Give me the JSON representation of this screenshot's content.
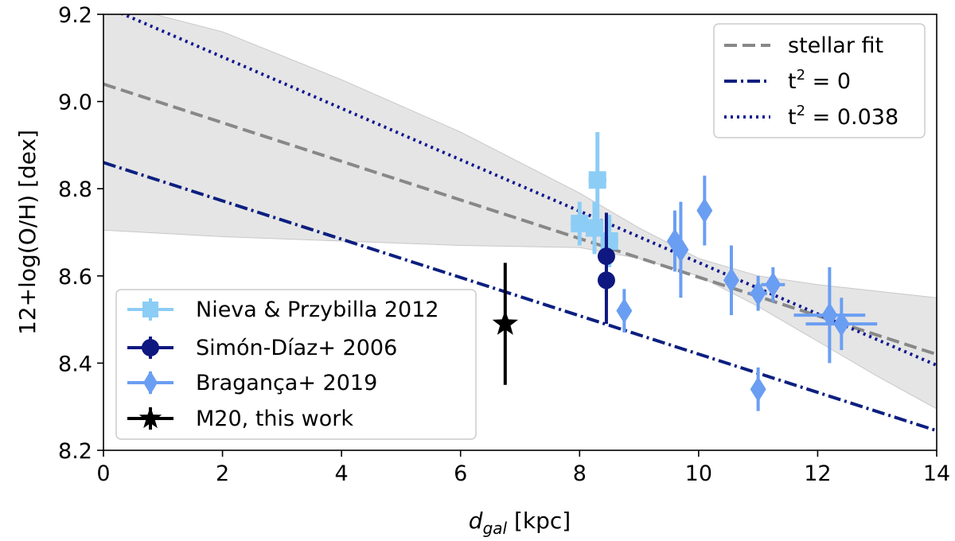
{
  "chart_data": {
    "type": "scatter",
    "title": "",
    "xlabel": {
      "main": "d",
      "sub": "gal",
      "unit": "[kpc]"
    },
    "ylabel": "12+log(O/H) [dex]",
    "xlim": [
      0,
      14
    ],
    "ylim": [
      8.2,
      9.2
    ],
    "xticks": [
      "0",
      "2",
      "4",
      "6",
      "8",
      "10",
      "12",
      "14"
    ],
    "yticks": [
      "8.2",
      "8.4",
      "8.6",
      "8.8",
      "9.0",
      "9.2"
    ],
    "grid": false,
    "legend_upper": {
      "placement": "top-right",
      "entries": [
        {
          "label": "stellar fit",
          "style": "dashed",
          "color": "#888888"
        },
        {
          "label_base": "t",
          "label_sup": "2",
          "label_rest": " = 0",
          "style": "dashdot",
          "color": "#0c1f80"
        },
        {
          "label_base": "t",
          "label_sup": "2",
          "label_rest": " = 0.038",
          "style": "dotted",
          "color": "#10188f"
        }
      ]
    },
    "legend_lower": {
      "placement": "bottom-left",
      "entries": [
        {
          "label": "Nieva & Przybilla 2012",
          "marker": "square",
          "color": "#8ccdf6"
        },
        {
          "label": "Simón-Díaz+ 2006",
          "marker": "circle",
          "color": "#0e1880"
        },
        {
          "label": "Bragança+ 2019",
          "marker": "diamond",
          "color": "#6a9ef2"
        },
        {
          "label": "M20, this work",
          "marker": "star",
          "color": "#000000"
        }
      ]
    },
    "lines": [
      {
        "name": "stellar fit",
        "x": [
          0,
          14
        ],
        "y": [
          9.04,
          8.42
        ],
        "style": "dashed",
        "color": "#888888"
      },
      {
        "name": "t2 = 0",
        "x": [
          0,
          14
        ],
        "y": [
          8.86,
          8.245
        ],
        "style": "dashdot",
        "color": "#0c1f80"
      },
      {
        "name": "t2 = 0.038",
        "x": [
          0,
          14
        ],
        "y": [
          9.22,
          8.395
        ],
        "style": "dotted",
        "color": "#10188f"
      }
    ],
    "band": {
      "color": "#dcdcdc",
      "x": [
        0,
        2,
        4,
        6,
        8,
        9,
        10,
        11,
        12,
        13,
        14
      ],
      "upper": [
        9.23,
        9.16,
        9.05,
        8.93,
        8.79,
        8.71,
        8.64,
        8.6,
        8.58,
        8.565,
        8.55
      ],
      "lower": [
        8.705,
        8.69,
        8.68,
        8.67,
        8.665,
        8.64,
        8.6,
        8.53,
        8.45,
        8.37,
        8.295
      ]
    },
    "series": [
      {
        "name": "Nieva & Przybilla 2012",
        "marker": "square",
        "color": "#8ccdf6",
        "points": [
          {
            "x": 8.3,
            "y": 8.82,
            "xerr": 0.15,
            "yerr": 0.11
          },
          {
            "x": 8.0,
            "y": 8.72,
            "xerr": 0.15,
            "yerr": 0.05
          },
          {
            "x": 8.25,
            "y": 8.71,
            "xerr": 0.15,
            "yerr": 0.06
          },
          {
            "x": 8.5,
            "y": 8.68,
            "xerr": 0.15,
            "yerr": 0.06
          }
        ]
      },
      {
        "name": "Simón-Díaz+ 2006",
        "marker": "circle",
        "color": "#0e1880",
        "points": [
          {
            "x": 8.45,
            "y": 8.645,
            "xerr": 0.05,
            "yerr": 0.1
          },
          {
            "x": 8.45,
            "y": 8.59,
            "xerr": 0.05,
            "yerr": 0.1
          }
        ]
      },
      {
        "name": "Bragança+ 2019",
        "marker": "diamond",
        "color": "#6a9ef2",
        "points": [
          {
            "x": 8.75,
            "y": 8.52,
            "xerr": 0.05,
            "yerr": 0.05
          },
          {
            "x": 9.6,
            "y": 8.68,
            "xerr": 0.05,
            "yerr": 0.07
          },
          {
            "x": 9.7,
            "y": 8.66,
            "xerr": 0.05,
            "yerr": 0.11
          },
          {
            "x": 10.1,
            "y": 8.75,
            "xerr": 0.05,
            "yerr": 0.08
          },
          {
            "x": 10.55,
            "y": 8.59,
            "xerr": 0.05,
            "yerr": 0.08
          },
          {
            "x": 11.0,
            "y": 8.56,
            "xerr": 0.15,
            "yerr": 0.04
          },
          {
            "x": 11.25,
            "y": 8.58,
            "xerr": 0.2,
            "yerr": 0.04
          },
          {
            "x": 11.0,
            "y": 8.34,
            "xerr": 0.05,
            "yerr": 0.05
          },
          {
            "x": 12.2,
            "y": 8.51,
            "xerr": 0.6,
            "yerr": 0.11
          },
          {
            "x": 12.4,
            "y": 8.49,
            "xerr": 0.6,
            "yerr": 0.06
          }
        ]
      },
      {
        "name": "M20, this work",
        "marker": "star",
        "color": "#000000",
        "points": [
          {
            "x": 6.75,
            "y": 8.49,
            "xerr": 0.0,
            "yerr": 0.14
          }
        ]
      }
    ]
  }
}
